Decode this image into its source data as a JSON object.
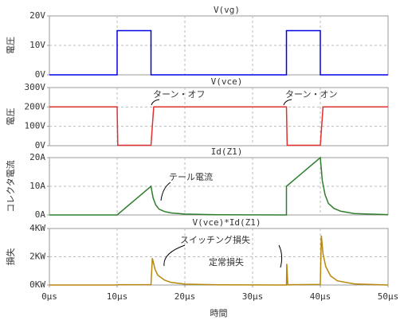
{
  "chart_data": [
    {
      "type": "line",
      "title": "V(vg)",
      "ylabel": "電圧",
      "color": "#0000e6",
      "grid": true,
      "xlim": [
        0,
        50
      ],
      "ylim": [
        0,
        20
      ],
      "yticks": [
        {
          "value": 0,
          "label": "0V"
        },
        {
          "value": 10,
          "label": "10V"
        },
        {
          "value": 20,
          "label": "20V"
        }
      ],
      "x": [
        0,
        10,
        10,
        15,
        15,
        35,
        35,
        40,
        40,
        50
      ],
      "values": [
        0,
        0,
        15,
        15,
        0,
        0,
        15,
        15,
        0,
        0
      ]
    },
    {
      "type": "line",
      "title": "V(vce)",
      "ylabel": "電圧",
      "color": "#e03030",
      "grid": true,
      "xlim": [
        0,
        50
      ],
      "ylim": [
        0,
        300
      ],
      "yticks": [
        {
          "value": 0,
          "label": "0V"
        },
        {
          "value": 100,
          "label": "100V"
        },
        {
          "value": 200,
          "label": "200V"
        },
        {
          "value": 300,
          "label": "300V"
        }
      ],
      "x": [
        0,
        10,
        10.1,
        15,
        15.4,
        35,
        35.1,
        40,
        40.4,
        50
      ],
      "values": [
        200,
        200,
        2,
        2,
        200,
        200,
        2,
        2,
        200,
        200
      ],
      "annotations": [
        "ターン・オフ",
        "ターン・オン"
      ]
    },
    {
      "type": "line",
      "title": "Id(Z1)",
      "ylabel": "コレクタ電流",
      "color": "#2e7d2e",
      "grid": true,
      "xlim": [
        0,
        50
      ],
      "ylim": [
        0,
        20
      ],
      "yticks": [
        {
          "value": 0,
          "label": "0A"
        },
        {
          "value": 10,
          "label": "10A"
        },
        {
          "value": 20,
          "label": "20A"
        }
      ],
      "x": [
        0,
        10,
        15,
        15.3,
        15.7,
        16.2,
        17,
        18,
        20,
        25,
        35,
        35,
        40,
        40.3,
        40.7,
        41.2,
        42,
        43,
        45,
        50
      ],
      "values": [
        0,
        0,
        10,
        6,
        3.5,
        2,
        1.2,
        0.7,
        0.3,
        0.05,
        0,
        10,
        20,
        12,
        7,
        4,
        2.3,
        1.3,
        0.5,
        0.1
      ],
      "annotations": [
        "テール電流"
      ]
    },
    {
      "type": "line",
      "title": "V(vce)*Id(Z1)",
      "ylabel": "損失",
      "color": "#b8860b",
      "grid": true,
      "xlim": [
        0,
        50
      ],
      "ylim": [
        0,
        4000
      ],
      "yticks": [
        {
          "value": 0,
          "label": "0KW"
        },
        {
          "value": 2000,
          "label": "2KW"
        },
        {
          "value": 4000,
          "label": "4KW"
        }
      ],
      "xticks": [
        {
          "value": 0,
          "label": "0µs"
        },
        {
          "value": 10,
          "label": "10µs"
        },
        {
          "value": 20,
          "label": "20µs"
        },
        {
          "value": 30,
          "label": "30µs"
        },
        {
          "value": 40,
          "label": "40µs"
        },
        {
          "value": 50,
          "label": "50µs"
        }
      ],
      "xlabel": "時間",
      "x": [
        0,
        10,
        10.1,
        15,
        15.2,
        15.6,
        16,
        17,
        18,
        20,
        25,
        35,
        35.05,
        35.2,
        40,
        40.15,
        40.4,
        40.8,
        41.5,
        42.5,
        45,
        50
      ],
      "values": [
        0,
        0,
        20,
        30,
        1900,
        1100,
        700,
        350,
        180,
        60,
        10,
        0,
        1500,
        20,
        40,
        3500,
        2200,
        1300,
        650,
        300,
        80,
        0
      ],
      "annotations": [
        "スイッチング損失",
        "定常損失"
      ]
    }
  ]
}
